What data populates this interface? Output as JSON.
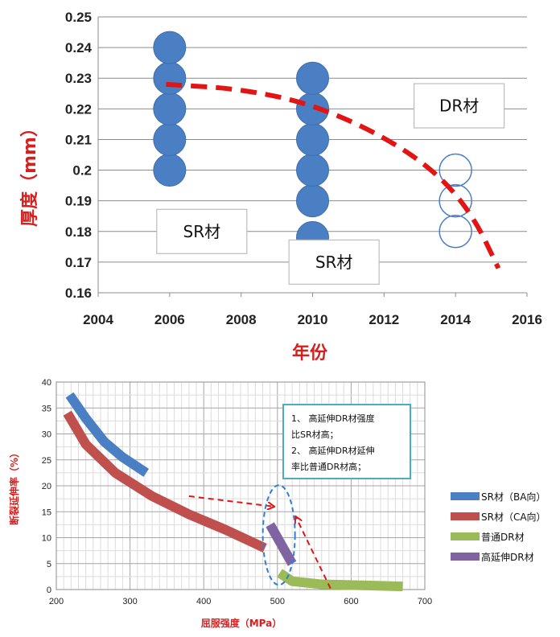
{
  "chart_data": [
    {
      "type": "scatter",
      "xlabel": "年份",
      "ylabel": "厚度（mm）",
      "xlim": [
        2004,
        2016
      ],
      "ylim": [
        0.16,
        0.25
      ],
      "xticks": [
        "2004",
        "2006",
        "2008",
        "2010",
        "2012",
        "2014",
        "2016"
      ],
      "yticks": [
        "0.16",
        "0.17",
        "0.18",
        "0.19",
        "0.2",
        "0.21",
        "0.22",
        "0.23",
        "0.24",
        "0.25"
      ],
      "grid": "horizontal",
      "series": [
        {
          "name": "",
          "marker": "filled-circle",
          "color": "#4a7fc3",
          "points": [
            [
              2006,
              0.2
            ],
            [
              2006,
              0.21
            ],
            [
              2006,
              0.22
            ],
            [
              2006,
              0.23
            ],
            [
              2006,
              0.24
            ],
            [
              2010,
              0.178
            ],
            [
              2010,
              0.19
            ],
            [
              2010,
              0.2
            ],
            [
              2010,
              0.21
            ],
            [
              2010,
              0.22
            ],
            [
              2010,
              0.23
            ]
          ]
        },
        {
          "name": "",
          "marker": "hollow-circle",
          "color": "#4a7fc3",
          "points": [
            [
              2014,
              0.2
            ],
            [
              2014,
              0.19
            ],
            [
              2014,
              0.18
            ]
          ]
        },
        {
          "name": "",
          "style": "dashed-trend",
          "color": "#e31414",
          "points": [
            [
              2005.9,
              0.228
            ],
            [
              2008,
              0.2265
            ],
            [
              2010,
              0.2215
            ],
            [
              2012,
              0.211
            ],
            [
              2013.5,
              0.199
            ],
            [
              2014.5,
              0.185
            ],
            [
              2015.2,
              0.168
            ]
          ]
        }
      ],
      "annotations": [
        {
          "text": "SR材",
          "x": 2006.9,
          "y": 0.18
        },
        {
          "text": "SR材",
          "x": 2010.6,
          "y": 0.17
        },
        {
          "text": "DR材",
          "x": 2014.1,
          "y": 0.221
        }
      ]
    },
    {
      "type": "line",
      "xlabel": "屈服强度（MPa）",
      "ylabel": "断裂延伸率（%）",
      "xlim": [
        200,
        700
      ],
      "ylim": [
        0,
        40
      ],
      "xticks": [
        "200",
        "300",
        "400",
        "500",
        "600",
        "700"
      ],
      "yticks": [
        "0",
        "5",
        "10",
        "15",
        "20",
        "25",
        "30",
        "35",
        "40"
      ],
      "grid": "both",
      "legend": "right",
      "series": [
        {
          "name": "SR材（BA向）",
          "color": "#4a7fc3",
          "points": [
            [
              218,
              37.5
            ],
            [
              240,
              33
            ],
            [
              265,
              28.5
            ],
            [
              290,
              25.5
            ],
            [
              322,
              22.5
            ]
          ]
        },
        {
          "name": "SR材（CA向）",
          "color": "#c0504d",
          "points": [
            [
              215,
              34
            ],
            [
              240,
              28
            ],
            [
              280,
              22.5
            ],
            [
              330,
              18
            ],
            [
              380,
              14.5
            ],
            [
              430,
              11.5
            ],
            [
              483,
              8
            ]
          ]
        },
        {
          "name": "普通DR材",
          "color": "#9bbb59",
          "points": [
            [
              503,
              3.2
            ],
            [
              520,
              1.6
            ],
            [
              560,
              1.0
            ],
            [
              620,
              0.8
            ],
            [
              670,
              0.6
            ]
          ]
        },
        {
          "name": "高延伸DR材",
          "color": "#8064a2",
          "points": [
            [
              490,
              12.5
            ],
            [
              500,
              10
            ],
            [
              510,
              7.5
            ],
            [
              520,
              5
            ]
          ]
        }
      ],
      "annotation_box": [
        "1、 高延伸DR材强度",
        "比SR材高；",
        "2、 高延伸DR材延伸",
        "率比普通DR材高；"
      ]
    }
  ]
}
